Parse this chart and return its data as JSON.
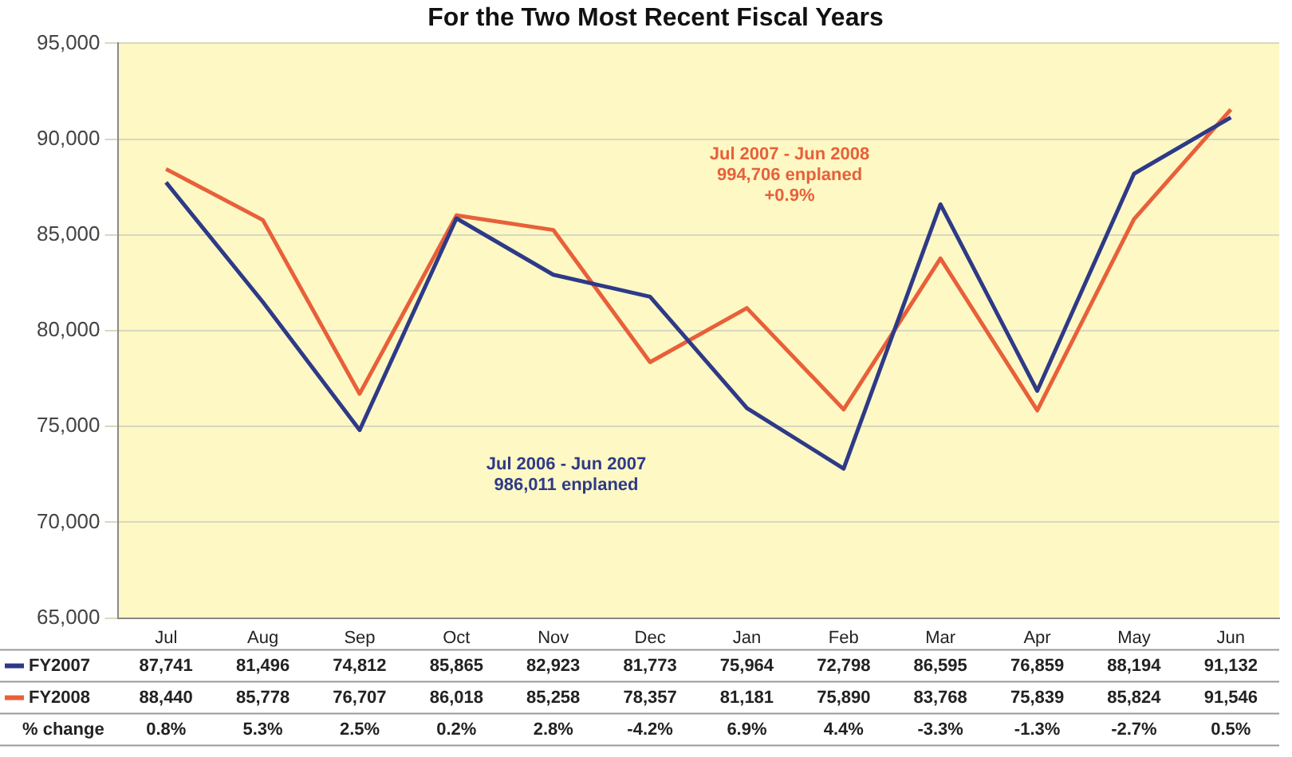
{
  "chart_data": {
    "type": "line",
    "title": "For the Two Most Recent Fiscal Years",
    "categories": [
      "Jul",
      "Aug",
      "Sep",
      "Oct",
      "Nov",
      "Dec",
      "Jan",
      "Feb",
      "Mar",
      "Apr",
      "May",
      "Jun"
    ],
    "series": [
      {
        "name": "FY2007",
        "color": "#2e3a87",
        "values": [
          87741,
          81496,
          74812,
          85865,
          82923,
          81773,
          75964,
          72798,
          86595,
          76859,
          88194,
          91132
        ],
        "value_labels": [
          "87,741",
          "81,496",
          "74,812",
          "85,865",
          "82,923",
          "81,773",
          "75,964",
          "72,798",
          "86,595",
          "76,859",
          "88,194",
          "91,132"
        ]
      },
      {
        "name": "FY2008",
        "color": "#e8603a",
        "values": [
          88440,
          85778,
          76707,
          86018,
          85258,
          78357,
          81181,
          75890,
          83768,
          75839,
          85824,
          91546
        ],
        "value_labels": [
          "88,440",
          "85,778",
          "76,707",
          "86,018",
          "85,258",
          "78,357",
          "81,181",
          "75,890",
          "83,768",
          "75,839",
          "85,824",
          "91,546"
        ]
      }
    ],
    "ylim": [
      65000,
      95000
    ],
    "yticks": [
      {
        "value": 65000,
        "label": "65,000"
      },
      {
        "value": 70000,
        "label": "70,000"
      },
      {
        "value": 75000,
        "label": "75,000"
      },
      {
        "value": 80000,
        "label": "80,000"
      },
      {
        "value": 85000,
        "label": "85,000"
      },
      {
        "value": 90000,
        "label": "90,000"
      },
      {
        "value": 95000,
        "label": "95,000"
      }
    ],
    "grid": "y",
    "legend": "bottom left",
    "marker": "none",
    "line_style": "solid",
    "annotations": [
      "Jul 2007 - Jun 2008\n994,706 enplaned\n+0.9%",
      "Jul 2006 - Jun 2007\n986,011 enplaned",
      "% change",
      "0.8%",
      "5.3%",
      "2.5%",
      "0.2%",
      "2.8%",
      "-4.2%",
      "6.9%",
      "4.4%",
      "-3.3%",
      "-1.3%",
      "-2.7%",
      "0.5%"
    ]
  }
}
